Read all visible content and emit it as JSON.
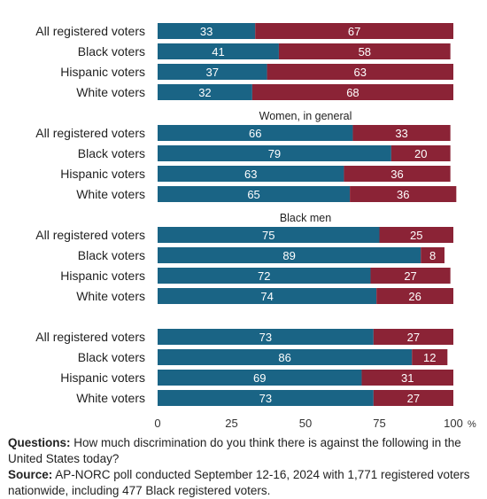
{
  "chart_data": {
    "type": "bar",
    "stacked": true,
    "orientation": "horizontal",
    "xlim": [
      0,
      100
    ],
    "x_ticks": [
      "0",
      "25",
      "50",
      "75",
      "100"
    ],
    "x_unit": "%",
    "colors": [
      "#1a6485",
      "#8b2336"
    ],
    "groups": [
      {
        "title": "",
        "categories": [
          "All registered voters",
          "Black voters",
          "Hispanic voters",
          "White voters"
        ],
        "series": [
          {
            "values": [
              33,
              41,
              37,
              32
            ]
          },
          {
            "values": [
              67,
              58,
              63,
              68
            ]
          }
        ]
      },
      {
        "title": "Women, in general",
        "categories": [
          "All registered voters",
          "Black voters",
          "Hispanic voters",
          "White voters"
        ],
        "series": [
          {
            "values": [
              66,
              79,
              63,
              65
            ]
          },
          {
            "values": [
              33,
              20,
              36,
              36
            ]
          }
        ]
      },
      {
        "title": "Black men",
        "categories": [
          "All registered voters",
          "Black voters",
          "Hispanic voters",
          "White voters"
        ],
        "series": [
          {
            "values": [
              75,
              89,
              72,
              74
            ]
          },
          {
            "values": [
              25,
              8,
              27,
              26
            ]
          }
        ]
      },
      {
        "title": "",
        "categories": [
          "All registered voters",
          "Black voters",
          "Hispanic voters",
          "White voters"
        ],
        "series": [
          {
            "values": [
              73,
              86,
              69,
              73
            ]
          },
          {
            "values": [
              27,
              12,
              31,
              27
            ]
          }
        ]
      }
    ]
  },
  "footer": {
    "questions_label": "Questions:",
    "questions_text": "How much discrimination do you think there is against the following in the United States today?",
    "source_label": "Source:",
    "source_text": "AP-NORC poll conducted September 12-16, 2024 with 1,771 registered voters nationwide, including 477 Black registered voters."
  }
}
